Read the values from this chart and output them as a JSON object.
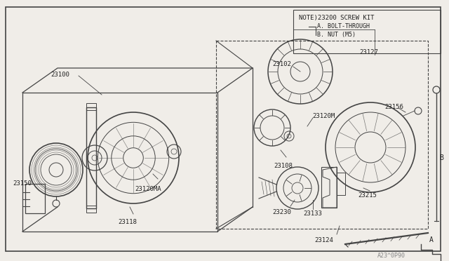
{
  "background_color": "#f0ede8",
  "line_color": "#444444",
  "text_color": "#222222",
  "fig_width": 6.4,
  "fig_height": 3.72,
  "note_text": "NOTE)23200 SCREW KIT",
  "note_a": "A. BOLT-THROUGH",
  "note_b": "B. NUT (M5)",
  "watermark": "A23^0P90"
}
